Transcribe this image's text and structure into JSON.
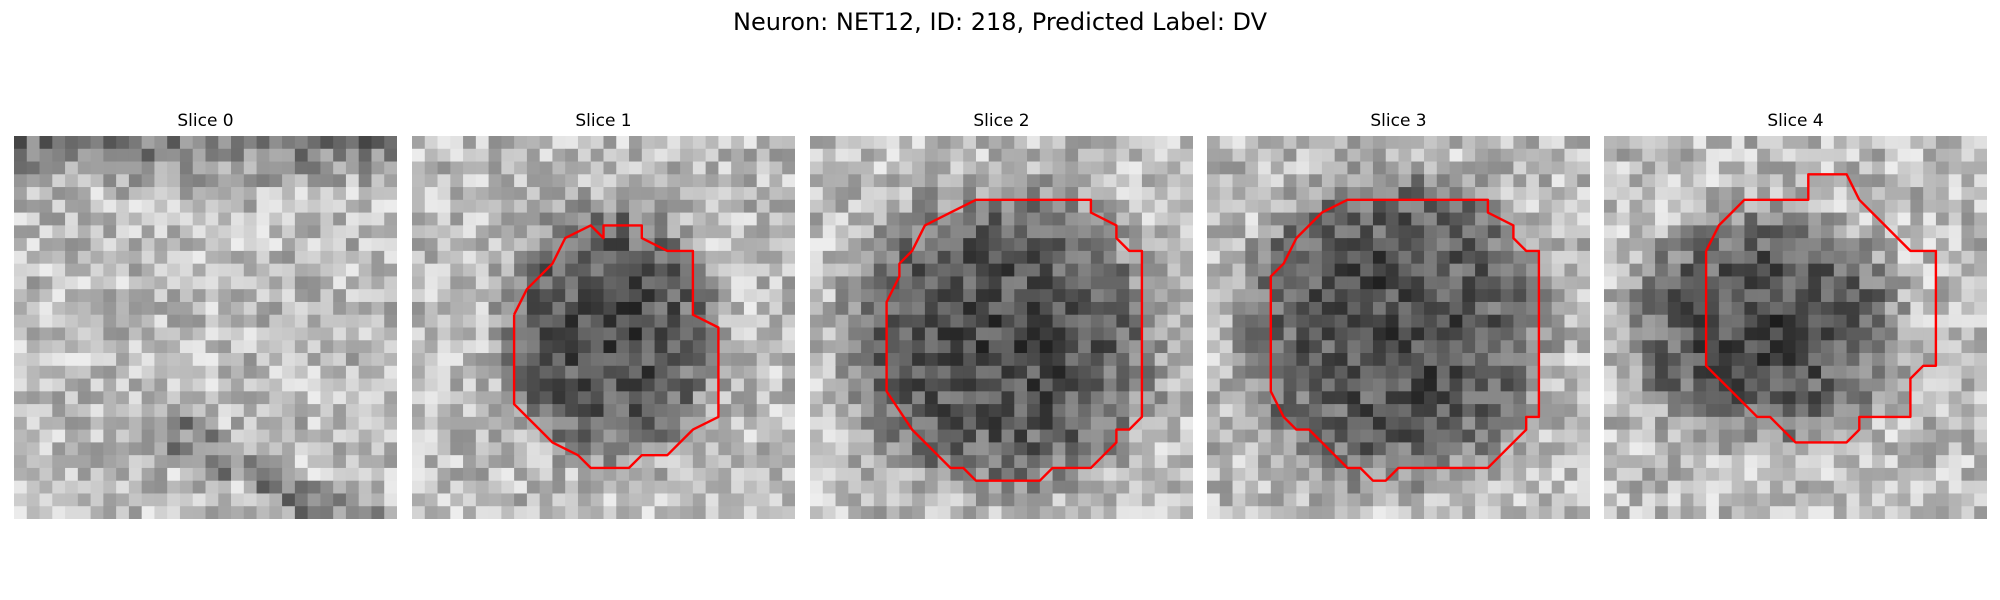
{
  "figure": {
    "title": "Neuron: NET12, ID: 218, Predicted Label: DV"
  },
  "contour_color": "#ff0000",
  "panels": [
    {
      "title": "Slice 0",
      "has_contour": false
    },
    {
      "title": "Slice 1",
      "has_contour": true
    },
    {
      "title": "Slice 2",
      "has_contour": true
    },
    {
      "title": "Slice 3",
      "has_contour": true
    },
    {
      "title": "Slice 4",
      "has_contour": true
    }
  ]
}
